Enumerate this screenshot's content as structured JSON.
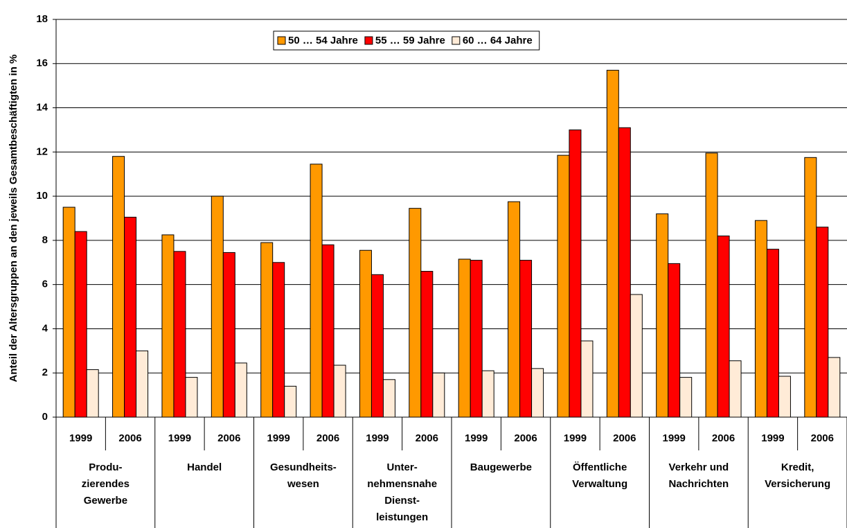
{
  "chart_data": {
    "type": "bar",
    "y_label": "Anteil der Altersgruppen an den jeweils Gesamtbeschäftigten in %",
    "categories": [
      "1999",
      "2006",
      "1999",
      "2006",
      "1999",
      "2006",
      "1999",
      "2006",
      "1999",
      "2006",
      "1999",
      "2006",
      "1999",
      "2006",
      "1999",
      "2006"
    ],
    "group_labels": [
      [
        "Produ-",
        "zierendes",
        "Gewerbe"
      ],
      [
        "Handel"
      ],
      [
        "Gesundheits-",
        "wesen"
      ],
      [
        "Unter-",
        "nehmensnahe",
        "Dienst-",
        "leistungen"
      ],
      [
        "Baugewerbe"
      ],
      [
        "Öffentliche",
        "Verwaltung"
      ],
      [
        "Verkehr und",
        "Nachrichten"
      ],
      [
        "Kredit,",
        "Versicherung"
      ]
    ],
    "series": [
      {
        "name": "50 … 54 Jahre",
        "color": "#FF9900",
        "values": [
          9.5,
          11.8,
          8.25,
          10.0,
          7.9,
          11.45,
          7.55,
          9.45,
          7.15,
          9.75,
          11.85,
          15.7,
          9.2,
          11.95,
          8.9,
          11.75
        ]
      },
      {
        "name": "55 … 59 Jahre",
        "color": "#FF0000",
        "values": [
          8.4,
          9.05,
          7.5,
          7.45,
          7.0,
          7.8,
          6.45,
          6.6,
          7.1,
          7.1,
          13.0,
          13.1,
          6.95,
          8.2,
          7.6,
          8.6
        ]
      },
      {
        "name": "60 … 64 Jahre",
        "color": "#FFEBD7",
        "values": [
          2.15,
          3.0,
          1.8,
          2.45,
          1.4,
          2.35,
          1.7,
          2.0,
          2.1,
          2.2,
          3.45,
          5.55,
          1.8,
          2.55,
          1.85,
          2.7
        ]
      }
    ],
    "ylim": [
      0,
      18
    ],
    "yticks": [
      0,
      2,
      4,
      6,
      8,
      10,
      12,
      14,
      16,
      18
    ],
    "grid": true,
    "legend": "top"
  }
}
